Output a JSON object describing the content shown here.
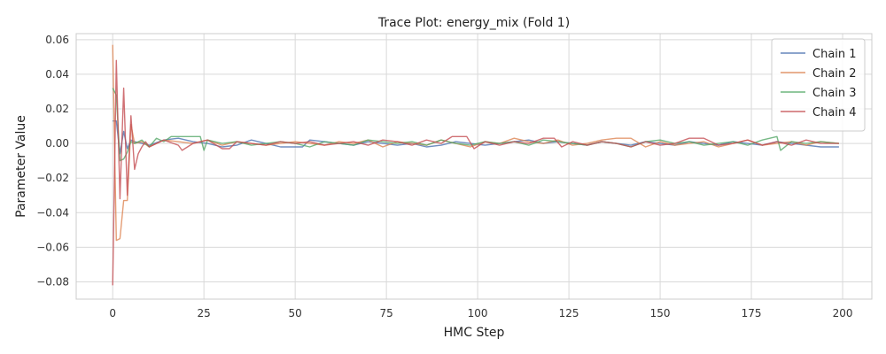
{
  "chart_data": {
    "type": "line",
    "title": "Trace Plot: energy_mix (Fold 1)",
    "xlabel": "HMC Step",
    "ylabel": "Parameter Value",
    "xlim": [
      -10,
      208
    ],
    "ylim": [
      -0.09,
      0.0635
    ],
    "xticks": [
      0,
      25,
      50,
      75,
      100,
      125,
      150,
      175,
      200
    ],
    "yticks": [
      -0.08,
      -0.06,
      -0.04,
      -0.02,
      0.0,
      0.02,
      0.04,
      0.06
    ],
    "ytick_labels": [
      "−0.08",
      "−0.06",
      "−0.04",
      "−0.02",
      "0.00",
      "0.02",
      "0.04",
      "0.06"
    ],
    "grid": true,
    "legend_position": "top-right",
    "series": [
      {
        "name": "Chain 1",
        "color": "#4c72b0",
        "keypoints": [
          [
            0,
            0.013
          ],
          [
            1,
            0.013
          ],
          [
            2,
            -0.006
          ],
          [
            3,
            0.007
          ],
          [
            4,
            -0.003
          ],
          [
            5,
            0.002
          ],
          [
            6,
            0.001
          ],
          [
            10,
            -0.001
          ],
          [
            14,
            0.002
          ],
          [
            18,
            0.003
          ],
          [
            22,
            0.001
          ],
          [
            26,
            0.0
          ],
          [
            30,
            -0.002
          ],
          [
            34,
            -0.001
          ],
          [
            38,
            0.002
          ],
          [
            42,
            0.0
          ],
          [
            46,
            -0.002
          ],
          [
            50,
            -0.002
          ],
          [
            52,
            -0.002
          ],
          [
            54,
            0.002
          ],
          [
            58,
            0.001
          ],
          [
            62,
            0.0
          ],
          [
            66,
            -0.001
          ],
          [
            70,
            0.001
          ],
          [
            74,
            0.0
          ],
          [
            78,
            -0.001
          ],
          [
            82,
            0.0
          ],
          [
            86,
            -0.002
          ],
          [
            90,
            -0.001
          ],
          [
            94,
            0.001
          ],
          [
            98,
            0.0
          ],
          [
            102,
            -0.001
          ],
          [
            106,
            0.0
          ],
          [
            110,
            0.001
          ],
          [
            114,
            0.002
          ],
          [
            118,
            0.0
          ],
          [
            122,
            0.001
          ],
          [
            126,
            0.0
          ],
          [
            130,
            -0.001
          ],
          [
            134,
            0.001
          ],
          [
            138,
            0.0
          ],
          [
            142,
            -0.001
          ],
          [
            146,
            0.001
          ],
          [
            150,
            0.0
          ],
          [
            154,
            -0.001
          ],
          [
            158,
            0.001
          ],
          [
            162,
            0.0
          ],
          [
            166,
            -0.001
          ],
          [
            170,
            0.001
          ],
          [
            174,
            0.0
          ],
          [
            178,
            -0.001
          ],
          [
            182,
            0.001
          ],
          [
            186,
            0.0
          ],
          [
            190,
            -0.001
          ],
          [
            194,
            -0.002
          ],
          [
            199,
            -0.002
          ]
        ]
      },
      {
        "name": "Chain 2",
        "color": "#dd8452",
        "keypoints": [
          [
            0,
            0.057
          ],
          [
            1,
            -0.056
          ],
          [
            2,
            -0.055
          ],
          [
            3,
            -0.033
          ],
          [
            4,
            -0.033
          ],
          [
            5,
            0.011
          ],
          [
            6,
            0.0
          ],
          [
            8,
            0.001
          ],
          [
            10,
            -0.002
          ],
          [
            14,
            0.002
          ],
          [
            18,
            0.001
          ],
          [
            22,
            0.0
          ],
          [
            26,
            0.002
          ],
          [
            30,
            -0.001
          ],
          [
            34,
            0.001
          ],
          [
            38,
            0.0
          ],
          [
            42,
            -0.001
          ],
          [
            46,
            0.0
          ],
          [
            50,
            0.001
          ],
          [
            54,
            0.0
          ],
          [
            58,
            -0.001
          ],
          [
            62,
            0.001
          ],
          [
            66,
            0.0
          ],
          [
            70,
            0.002
          ],
          [
            74,
            -0.002
          ],
          [
            78,
            0.001
          ],
          [
            82,
            0.0
          ],
          [
            86,
            -0.001
          ],
          [
            90,
            0.002
          ],
          [
            94,
            0.0
          ],
          [
            98,
            -0.002
          ],
          [
            102,
            0.001
          ],
          [
            106,
            0.0
          ],
          [
            110,
            0.003
          ],
          [
            114,
            0.001
          ],
          [
            118,
            0.0
          ],
          [
            122,
            0.002
          ],
          [
            126,
            -0.001
          ],
          [
            130,
            0.0
          ],
          [
            134,
            0.002
          ],
          [
            138,
            0.003
          ],
          [
            142,
            0.003
          ],
          [
            146,
            -0.002
          ],
          [
            150,
            0.001
          ],
          [
            154,
            -0.001
          ],
          [
            158,
            0.0
          ],
          [
            162,
            0.001
          ],
          [
            166,
            -0.002
          ],
          [
            170,
            0.0
          ],
          [
            174,
            0.002
          ],
          [
            178,
            -0.001
          ],
          [
            182,
            0.0
          ],
          [
            186,
            0.001
          ],
          [
            190,
            -0.001
          ],
          [
            194,
            0.001
          ],
          [
            199,
            0.0
          ]
        ]
      },
      {
        "name": "Chain 3",
        "color": "#55a868",
        "keypoints": [
          [
            0,
            0.032
          ],
          [
            1,
            0.028
          ],
          [
            2,
            -0.01
          ],
          [
            3,
            -0.009
          ],
          [
            4,
            -0.005
          ],
          [
            5,
            0.001
          ],
          [
            6,
            0.0
          ],
          [
            8,
            0.002
          ],
          [
            10,
            -0.002
          ],
          [
            12,
            0.003
          ],
          [
            14,
            0.001
          ],
          [
            16,
            0.004
          ],
          [
            18,
            0.004
          ],
          [
            20,
            0.004
          ],
          [
            22,
            0.004
          ],
          [
            24,
            0.004
          ],
          [
            25,
            -0.004
          ],
          [
            26,
            0.002
          ],
          [
            30,
            0.0
          ],
          [
            34,
            0.001
          ],
          [
            38,
            -0.001
          ],
          [
            42,
            0.0
          ],
          [
            46,
            0.001
          ],
          [
            50,
            0.0
          ],
          [
            54,
            -0.002
          ],
          [
            58,
            0.001
          ],
          [
            62,
            0.0
          ],
          [
            66,
            -0.001
          ],
          [
            70,
            0.002
          ],
          [
            74,
            0.001
          ],
          [
            78,
            0.0
          ],
          [
            82,
            0.001
          ],
          [
            86,
            -0.001
          ],
          [
            90,
            0.002
          ],
          [
            94,
            0.0
          ],
          [
            98,
            -0.001
          ],
          [
            102,
            0.001
          ],
          [
            106,
            0.0
          ],
          [
            110,
            0.001
          ],
          [
            114,
            -0.001
          ],
          [
            118,
            0.002
          ],
          [
            122,
            0.001
          ],
          [
            126,
            0.0
          ],
          [
            130,
            -0.001
          ],
          [
            134,
            0.001
          ],
          [
            138,
            0.0
          ],
          [
            142,
            -0.002
          ],
          [
            146,
            0.001
          ],
          [
            150,
            0.002
          ],
          [
            154,
            0.0
          ],
          [
            158,
            0.001
          ],
          [
            162,
            -0.001
          ],
          [
            166,
            0.0
          ],
          [
            170,
            0.001
          ],
          [
            174,
            -0.001
          ],
          [
            178,
            0.002
          ],
          [
            182,
            0.004
          ],
          [
            183,
            -0.004
          ],
          [
            186,
            0.001
          ],
          [
            190,
            0.0
          ],
          [
            194,
            0.001
          ],
          [
            199,
            0.0
          ]
        ]
      },
      {
        "name": "Chain 4",
        "color": "#c44e52",
        "keypoints": [
          [
            0,
            -0.082
          ],
          [
            1,
            0.048
          ],
          [
            2,
            -0.032
          ],
          [
            3,
            0.032
          ],
          [
            4,
            -0.03
          ],
          [
            5,
            0.016
          ],
          [
            6,
            -0.015
          ],
          [
            7,
            -0.006
          ],
          [
            8,
            -0.002
          ],
          [
            9,
            0.001
          ],
          [
            10,
            -0.002
          ],
          [
            14,
            0.002
          ],
          [
            18,
            -0.001
          ],
          [
            19,
            -0.004
          ],
          [
            22,
            0.0
          ],
          [
            26,
            0.002
          ],
          [
            30,
            -0.003
          ],
          [
            32,
            -0.003
          ],
          [
            34,
            0.001
          ],
          [
            38,
            0.0
          ],
          [
            42,
            -0.001
          ],
          [
            46,
            0.001
          ],
          [
            50,
            0.0
          ],
          [
            54,
            0.001
          ],
          [
            58,
            -0.001
          ],
          [
            62,
            0.0
          ],
          [
            66,
            0.001
          ],
          [
            70,
            -0.001
          ],
          [
            74,
            0.002
          ],
          [
            78,
            0.001
          ],
          [
            82,
            -0.001
          ],
          [
            86,
            0.002
          ],
          [
            90,
            0.0
          ],
          [
            93,
            0.004
          ],
          [
            97,
            0.004
          ],
          [
            99,
            -0.003
          ],
          [
            102,
            0.001
          ],
          [
            106,
            -0.001
          ],
          [
            110,
            0.001
          ],
          [
            114,
            0.0
          ],
          [
            118,
            0.003
          ],
          [
            121,
            0.003
          ],
          [
            123,
            -0.002
          ],
          [
            126,
            0.001
          ],
          [
            130,
            -0.001
          ],
          [
            134,
            0.001
          ],
          [
            138,
            0.0
          ],
          [
            142,
            -0.002
          ],
          [
            146,
            0.001
          ],
          [
            150,
            -0.001
          ],
          [
            154,
            0.0
          ],
          [
            158,
            0.003
          ],
          [
            162,
            0.003
          ],
          [
            166,
            -0.001
          ],
          [
            170,
            0.0
          ],
          [
            174,
            0.002
          ],
          [
            178,
            -0.001
          ],
          [
            182,
            0.001
          ],
          [
            186,
            -0.001
          ],
          [
            190,
            0.002
          ],
          [
            194,
            0.0
          ],
          [
            199,
            0.0
          ]
        ]
      }
    ]
  }
}
